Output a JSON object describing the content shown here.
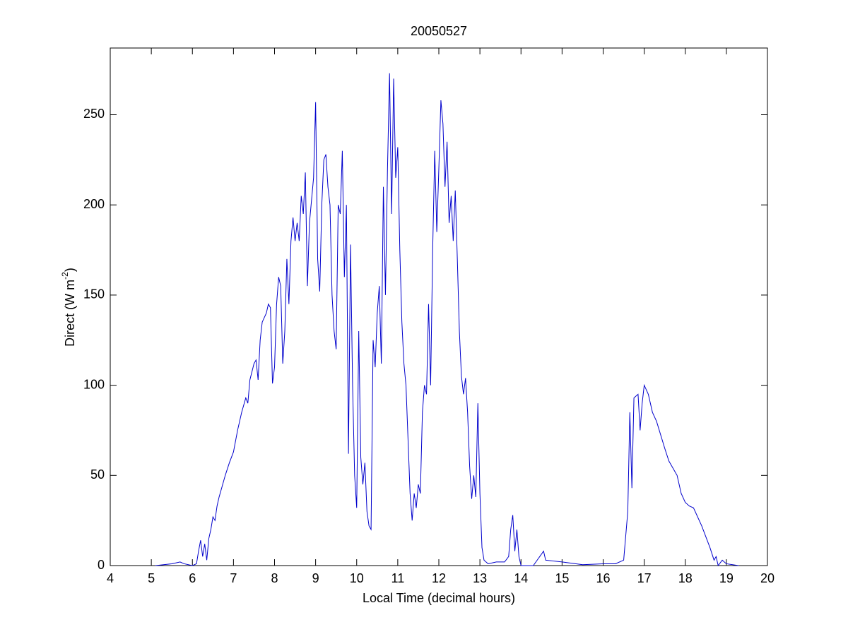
{
  "chart_data": {
    "type": "line",
    "title": "20050527",
    "xlabel": "Local Time (decimal hours)",
    "ylabel": {
      "text": "Direct (W m",
      "superscript": "-2",
      "suffix": ")"
    },
    "color": "#0000cc",
    "xlim": [
      4,
      20
    ],
    "xticks": [
      4,
      5,
      6,
      7,
      8,
      9,
      10,
      11,
      12,
      13,
      14,
      15,
      16,
      17,
      18,
      19,
      20
    ],
    "ylim": [
      0,
      287
    ],
    "yticks": [
      0,
      50,
      100,
      150,
      200,
      250
    ],
    "grid": false,
    "x": [
      5.1,
      5.3,
      5.5,
      5.7,
      5.8,
      6.0,
      6.1,
      6.15,
      6.2,
      6.25,
      6.3,
      6.35,
      6.4,
      6.45,
      6.5,
      6.55,
      6.6,
      6.65,
      6.7,
      6.8,
      6.9,
      7.0,
      7.1,
      7.2,
      7.3,
      7.35,
      7.4,
      7.5,
      7.55,
      7.6,
      7.65,
      7.7,
      7.8,
      7.85,
      7.9,
      7.95,
      8.0,
      8.05,
      8.1,
      8.15,
      8.2,
      8.25,
      8.3,
      8.35,
      8.4,
      8.45,
      8.5,
      8.55,
      8.6,
      8.65,
      8.7,
      8.75,
      8.8,
      8.85,
      8.95,
      9.0,
      9.05,
      9.1,
      9.15,
      9.2,
      9.25,
      9.3,
      9.35,
      9.4,
      9.45,
      9.5,
      9.55,
      9.6,
      9.65,
      9.7,
      9.75,
      9.8,
      9.85,
      9.9,
      9.95,
      10.0,
      10.05,
      10.1,
      10.15,
      10.2,
      10.25,
      10.3,
      10.35,
      10.4,
      10.45,
      10.5,
      10.55,
      10.6,
      10.65,
      10.7,
      10.75,
      10.8,
      10.85,
      10.9,
      10.95,
      11.0,
      11.05,
      11.1,
      11.15,
      11.2,
      11.25,
      11.3,
      11.35,
      11.4,
      11.45,
      11.5,
      11.55,
      11.6,
      11.65,
      11.7,
      11.75,
      11.8,
      11.85,
      11.9,
      11.95,
      12.0,
      12.05,
      12.1,
      12.15,
      12.2,
      12.25,
      12.3,
      12.35,
      12.4,
      12.45,
      12.5,
      12.55,
      12.6,
      12.65,
      12.7,
      12.75,
      12.8,
      12.85,
      12.9,
      12.95,
      13.0,
      13.05,
      13.1,
      13.2,
      13.4,
      13.6,
      13.7,
      13.75,
      13.8,
      13.85,
      13.9,
      13.95,
      14.0,
      14.3,
      14.55,
      14.6,
      15.0,
      15.5,
      16.0,
      16.3,
      16.5,
      16.6,
      16.65,
      16.7,
      16.75,
      16.85,
      16.9,
      16.95,
      17.0,
      17.1,
      17.2,
      17.3,
      17.5,
      17.6,
      17.8,
      17.9,
      18.0,
      18.1,
      18.2,
      18.4,
      18.6,
      18.7,
      18.75,
      18.8,
      18.9,
      19.0,
      19.3
    ],
    "values": [
      0,
      0.5,
      1,
      2,
      1,
      0,
      1,
      8,
      14,
      5,
      12,
      3,
      15,
      20,
      27,
      25,
      33,
      38,
      42,
      50,
      57,
      63,
      75,
      85,
      93,
      90,
      103,
      112,
      114,
      103,
      125,
      135,
      140,
      145,
      143,
      101,
      110,
      145,
      160,
      155,
      112,
      130,
      170,
      145,
      180,
      193,
      180,
      190,
      180,
      205,
      195,
      218,
      155,
      190,
      215,
      257,
      170,
      152,
      200,
      225,
      228,
      210,
      200,
      150,
      130,
      120,
      200,
      195,
      230,
      160,
      200,
      62,
      178,
      100,
      50,
      32,
      130,
      60,
      45,
      57,
      30,
      22,
      20,
      125,
      110,
      140,
      155,
      112,
      210,
      150,
      220,
      273,
      195,
      270,
      215,
      232,
      175,
      135,
      112,
      100,
      70,
      40,
      25,
      40,
      32,
      45,
      40,
      85,
      100,
      95,
      145,
      100,
      175,
      230,
      185,
      220,
      258,
      245,
      210,
      235,
      190,
      205,
      180,
      208,
      170,
      130,
      105,
      95,
      104,
      85,
      55,
      37,
      50,
      38,
      90,
      40,
      10,
      3,
      1,
      2,
      2,
      5,
      20,
      28,
      8,
      20,
      5,
      0,
      0,
      8,
      3,
      2,
      0.5,
      1,
      1,
      3,
      30,
      85,
      43,
      93,
      95,
      75,
      90,
      100,
      95,
      85,
      80,
      65,
      58,
      50,
      40,
      35,
      33,
      32,
      22,
      10,
      3,
      5,
      0,
      3,
      1,
      0
    ]
  }
}
